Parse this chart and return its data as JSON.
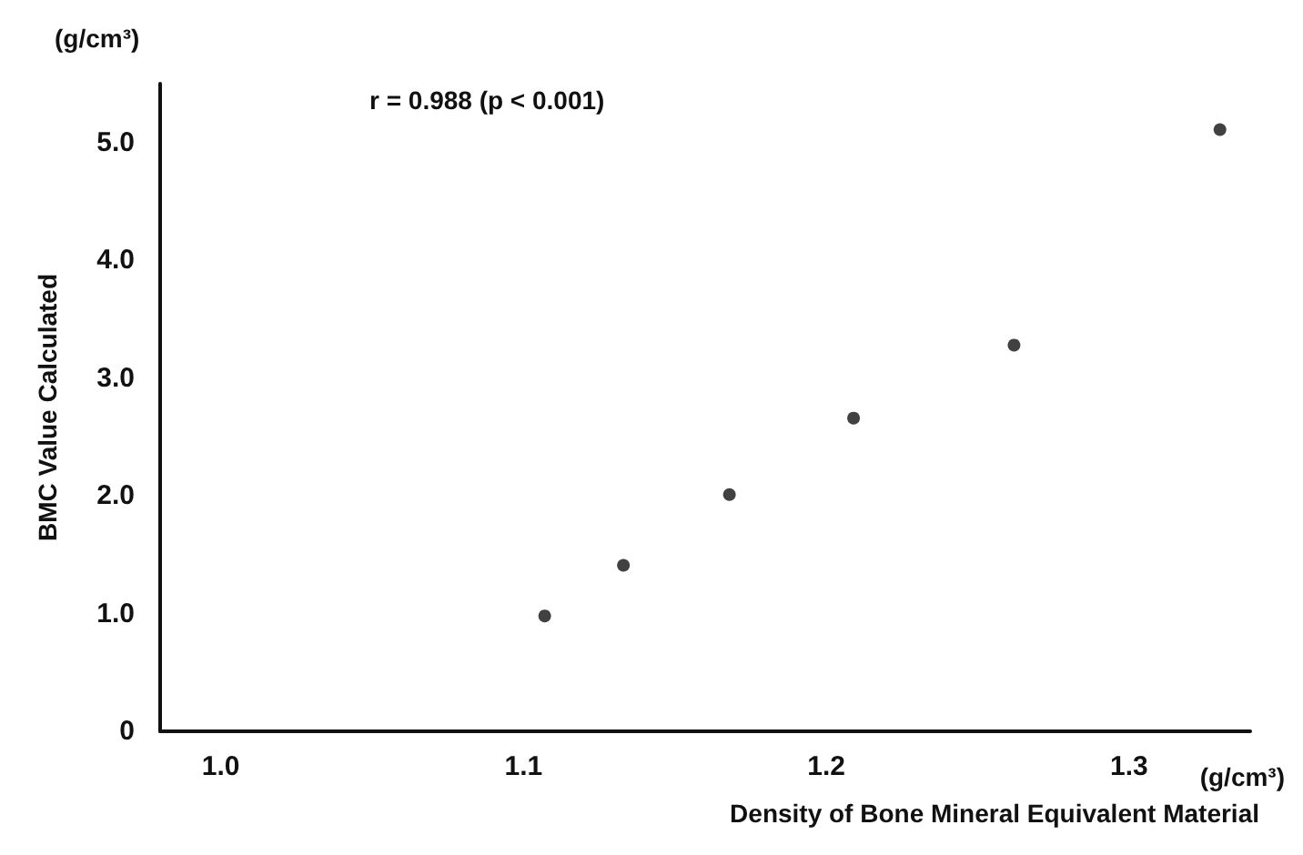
{
  "chart_data": {
    "type": "scatter",
    "xlabel": "Density of Bone Mineral Equivalent Material",
    "ylabel": "BMC Value Calculated",
    "annotations": [
      "r = 0.988 (p < 0.001)",
      "(g/cm³)",
      "(g/cm³)"
    ],
    "x": [
      1.107,
      1.133,
      1.168,
      1.209,
      1.262,
      1.33
    ],
    "series": [
      {
        "color": "#111111",
        "values": [
          0.98,
          1.41,
          2.01,
          2.66,
          3.28,
          5.11
        ]
      }
    ],
    "xlim": [
      0.98,
      1.34
    ],
    "xticks": [
      {
        "value": 1.0,
        "label": "1.0"
      },
      {
        "value": 1.1,
        "label": "1.1"
      },
      {
        "value": 1.2,
        "label": "1.2"
      },
      {
        "value": 1.3,
        "label": "1.3"
      }
    ],
    "ylim": [
      0,
      5.5
    ],
    "yticks": [
      {
        "value": 0,
        "label": "0"
      },
      {
        "value": 1,
        "label": "1.0"
      },
      {
        "value": 2,
        "label": "2.0"
      },
      {
        "value": 3,
        "label": "3.0"
      },
      {
        "value": 4,
        "label": "4.0"
      },
      {
        "value": 5,
        "label": "5.0"
      }
    ],
    "grid": false,
    "marker": "circle"
  }
}
